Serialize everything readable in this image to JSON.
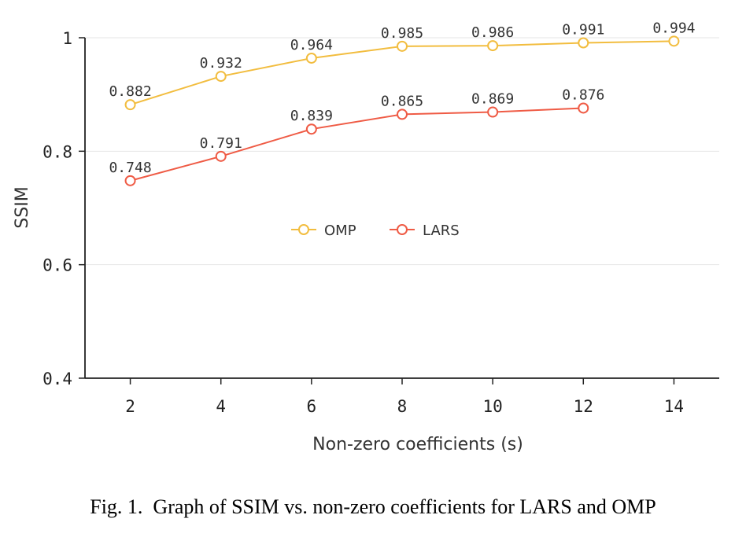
{
  "chart_data": {
    "type": "line",
    "ylabel": "SSIM",
    "xlabel": "Non-zero coefficients (s)",
    "x_ticks": [
      2,
      4,
      6,
      8,
      10,
      12,
      14
    ],
    "y_ticks": [
      "0.4",
      "0.6",
      "0.8",
      "1"
    ],
    "xlim": [
      1,
      15
    ],
    "ylim": [
      0.4,
      1.0
    ],
    "grid": "horizontal",
    "legend_position": "center",
    "series": [
      {
        "name": "OMP",
        "color": "#f2bd3f",
        "x": [
          2,
          4,
          6,
          8,
          10,
          12,
          14
        ],
        "values": [
          0.882,
          0.932,
          0.964,
          0.985,
          0.986,
          0.991,
          0.994
        ],
        "labels": [
          "0.882",
          "0.932",
          "0.964",
          "0.985",
          "0.986",
          "0.991",
          "0.994"
        ]
      },
      {
        "name": "LARS",
        "color": "#ef5b45",
        "x": [
          2,
          4,
          6,
          8,
          10,
          12
        ],
        "values": [
          0.748,
          0.791,
          0.839,
          0.865,
          0.869,
          0.876
        ],
        "labels": [
          "0.748",
          "0.791",
          "0.839",
          "0.865",
          "0.869",
          "0.876"
        ]
      }
    ]
  },
  "caption": "Fig. 1.  Graph of SSIM vs. non-zero coefficients for LARS and OMP"
}
